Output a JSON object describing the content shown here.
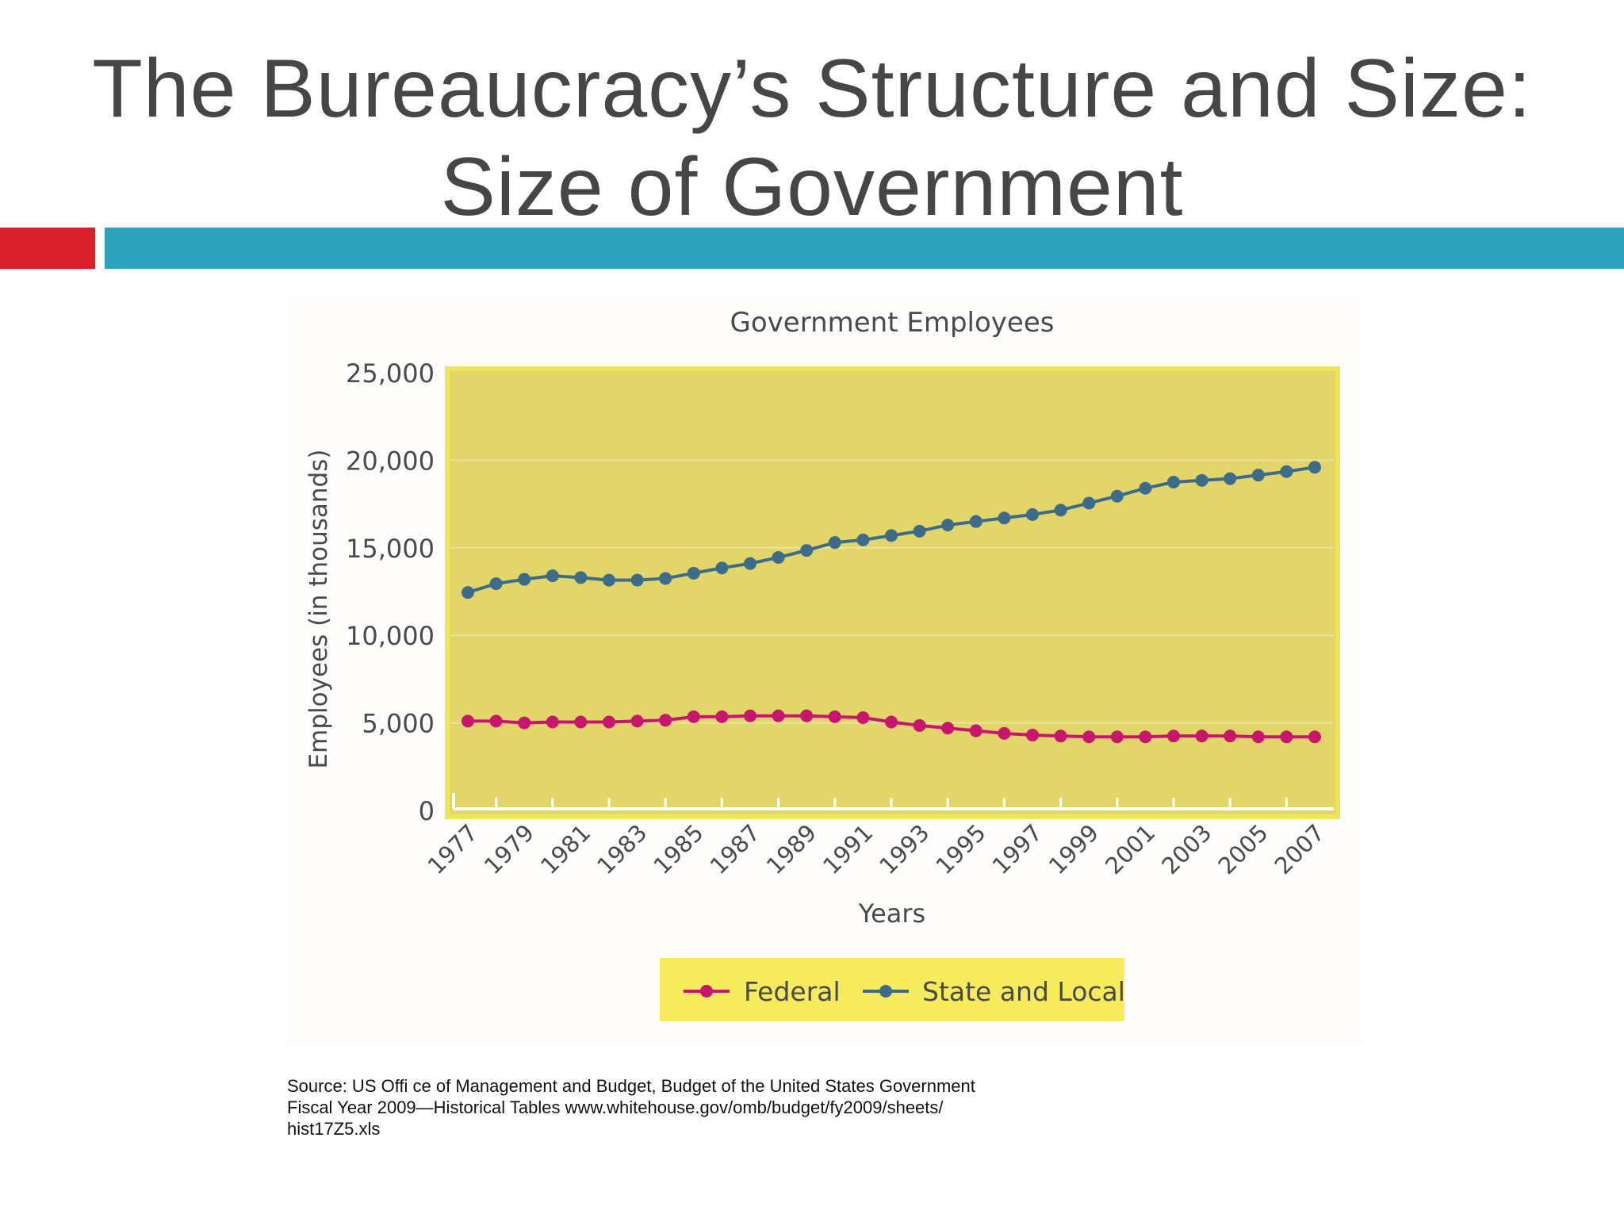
{
  "slide": {
    "title_line1": "The Bureaucracy’s Structure and Size:",
    "title_line2": "Size of Government",
    "accent_red": "#d9202a",
    "accent_teal": "#2ba3bd",
    "source_line1": "Source: US Offi ce of Management and Budget, Budget of the United States Government",
    "source_line2": "Fiscal Year 2009—Historical Tables www.whitehouse.gov/omb/budget/fy2009/sheets/",
    "source_line3": "hist17Z5.xls"
  },
  "colors": {
    "plot_bg": "#e2d66a",
    "plot_border": "#efe55a",
    "legend_bg": "#f5eb5c",
    "federal": "#c8166e",
    "state_local": "#3d6b8a",
    "axis_text": "#4a4a4a"
  },
  "chart_data": {
    "type": "line",
    "title": "Government Employees",
    "xlabel": "Years",
    "ylabel": "Employees (in thousands)",
    "ylim": [
      0,
      25000
    ],
    "yticks": [
      0,
      5000,
      10000,
      15000,
      20000,
      25000
    ],
    "ytick_labels": [
      "0",
      "5,000",
      "10,000",
      "15,000",
      "20,000",
      "25,000"
    ],
    "x": [
      1977,
      1978,
      1979,
      1980,
      1981,
      1982,
      1983,
      1984,
      1985,
      1986,
      1987,
      1988,
      1989,
      1990,
      1991,
      1992,
      1993,
      1994,
      1995,
      1996,
      1997,
      1998,
      1999,
      2000,
      2001,
      2002,
      2003,
      2004,
      2005,
      2006,
      2007
    ],
    "xtick_labels": [
      "1977",
      "1979",
      "1981",
      "1983",
      "1985",
      "1987",
      "1989",
      "1991",
      "1993",
      "1995",
      "1997",
      "1999",
      "2001",
      "2003",
      "2005",
      "2007"
    ],
    "legend_position": "bottom-center",
    "series": [
      {
        "name": "Federal",
        "color": "#c8166e",
        "values": [
          5100,
          5100,
          5000,
          5050,
          5050,
          5050,
          5100,
          5150,
          5350,
          5350,
          5400,
          5400,
          5400,
          5350,
          5300,
          5050,
          4850,
          4700,
          4550,
          4400,
          4300,
          4250,
          4200,
          4200,
          4200,
          4250,
          4250,
          4250,
          4200,
          4200,
          4200
        ]
      },
      {
        "name": "State and Local",
        "color": "#3d6b8a",
        "values": [
          12450,
          12950,
          13200,
          13400,
          13300,
          13150,
          13150,
          13250,
          13550,
          13850,
          14100,
          14450,
          14850,
          15300,
          15450,
          15700,
          15950,
          16300,
          16500,
          16700,
          16900,
          17150,
          17550,
          17950,
          18400,
          18750,
          18850,
          18950,
          19150,
          19350,
          19600
        ]
      }
    ]
  }
}
